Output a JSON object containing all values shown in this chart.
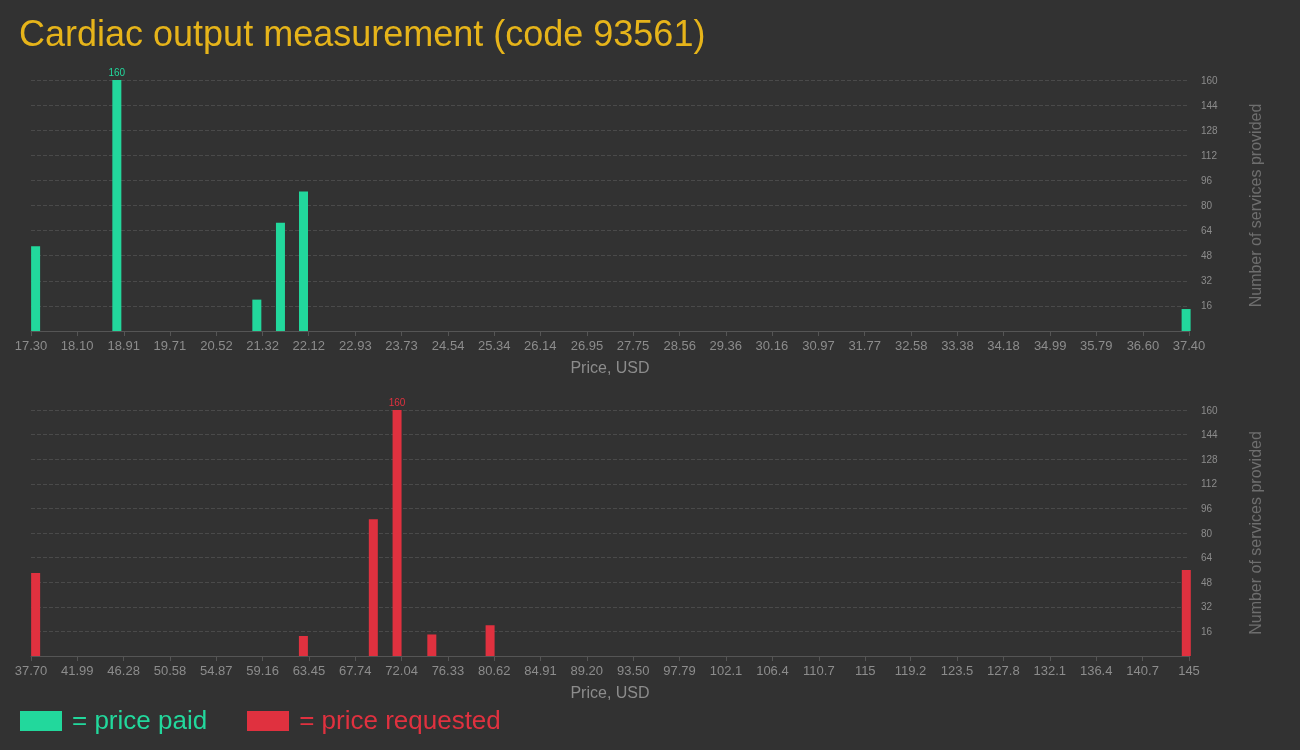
{
  "chart_data": [
    {
      "type": "bar",
      "title": "Cardiac output measurement (code 93561)",
      "xlabel": "Price, USD",
      "ylabel": "Number of services provided",
      "x": [
        17.38,
        18.79,
        21.22,
        21.63,
        22.03,
        37.35
      ],
      "series": [
        {
          "name": "= price paid",
          "color": "#22d89c",
          "values": [
            54,
            160,
            20,
            69,
            89,
            14
          ],
          "value_labels": [
            null,
            "160",
            null,
            null,
            null,
            null
          ]
        }
      ],
      "xlim": [
        17.3,
        37.4
      ],
      "xticks": [
        {
          "value": 17.3,
          "label": "17.30"
        },
        {
          "value": 18.1,
          "label": "18.10"
        },
        18.91,
        19.71,
        20.52,
        21.32,
        22.12,
        22.93,
        23.73,
        24.54,
        25.34,
        26.14,
        26.95,
        27.75,
        28.56,
        29.36,
        30.16,
        30.97,
        31.77,
        32.58,
        33.38,
        34.18,
        34.99,
        35.79,
        {
          "value": 36.6,
          "label": "36.60"
        },
        {
          "value": 37.4,
          "label": "37.40"
        }
      ],
      "ylim": [
        0,
        160
      ],
      "yticks": [
        16,
        32,
        48,
        64,
        80,
        96,
        112,
        128,
        144,
        160
      ],
      "grid": "y",
      "legend": "bottom left"
    },
    {
      "type": "bar",
      "xlabel": "Price, USD",
      "ylabel": "Number of services provided",
      "x": [
        38.13,
        62.94,
        69.42,
        71.62,
        74.84,
        80.24,
        144.75
      ],
      "series": [
        {
          "name": "= price requested",
          "color": "#e0313f",
          "values": [
            54,
            13,
            89,
            160,
            14,
            20,
            56
          ],
          "value_labels": [
            null,
            null,
            null,
            "160",
            null,
            null,
            null
          ]
        }
      ],
      "xlim": [
        37.7,
        145
      ],
      "xticks": [
        {
          "value": 37.7,
          "label": "37.70"
        },
        41.99,
        46.28,
        50.58,
        54.87,
        59.16,
        63.45,
        67.74,
        72.04,
        76.33,
        80.62,
        84.91,
        {
          "value": 89.2,
          "label": "89.20"
        },
        {
          "value": 93.5,
          "label": "93.50"
        },
        97.79,
        102.1,
        106.4,
        110.7,
        115,
        119.2,
        123.5,
        127.8,
        132.1,
        136.4,
        140.7,
        145
      ],
      "ylim": [
        0,
        160
      ],
      "yticks": [
        16,
        32,
        48,
        64,
        80,
        96,
        112,
        128,
        144,
        160
      ],
      "grid": "y",
      "legend": "bottom left"
    }
  ]
}
